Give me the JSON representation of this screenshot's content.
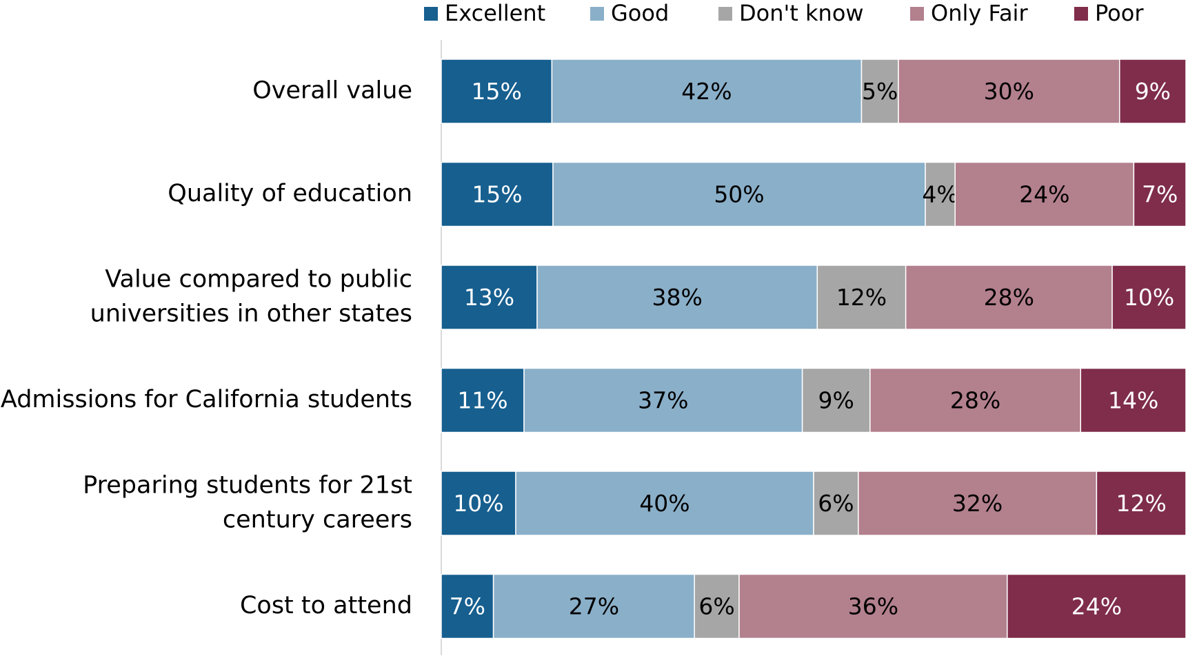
{
  "chart_data": {
    "type": "stacked_barh",
    "categories": [
      [
        "Overall value"
      ],
      [
        "Quality of education"
      ],
      [
        "Value compared to public",
        "universities in other states"
      ],
      [
        "Admissions for California students"
      ],
      [
        "Preparing students for 21st",
        "century careers"
      ],
      [
        "Cost to attend"
      ]
    ],
    "series": [
      {
        "name": "Excellent",
        "color": "#165f8f",
        "label_color": "#ffffff",
        "values": [
          15,
          15,
          13,
          11,
          10,
          7
        ],
        "value_labels": [
          "15%",
          "15%",
          "13%",
          "11%",
          "10%",
          "7%"
        ]
      },
      {
        "name": "Good",
        "color": "#8aafc9",
        "label_color": "#000000",
        "values": [
          42,
          50,
          38,
          37,
          40,
          27
        ],
        "value_labels": [
          "42%",
          "50%",
          "38%",
          "37%",
          "40%",
          "27%"
        ]
      },
      {
        "name": "Don't know",
        "color": "#a6a6a6",
        "label_color": "#000000",
        "values": [
          5,
          4,
          12,
          9,
          6,
          6
        ],
        "value_labels": [
          "5%",
          "4%",
          "12%",
          "9%",
          "6%",
          "6%"
        ]
      },
      {
        "name": "Only Fair",
        "color": "#b3808e",
        "label_color": "#000000",
        "values": [
          30,
          24,
          28,
          28,
          32,
          36
        ],
        "value_labels": [
          "30%",
          "24%",
          "28%",
          "28%",
          "32%",
          "36%"
        ]
      },
      {
        "name": "Poor",
        "color": "#7f2d4b",
        "label_color": "#ffffff",
        "values": [
          9,
          7,
          10,
          14,
          12,
          24
        ],
        "value_labels": [
          "9%",
          "7%",
          "10%",
          "14%",
          "12%",
          "24%"
        ]
      }
    ],
    "legend": "top-right"
  }
}
